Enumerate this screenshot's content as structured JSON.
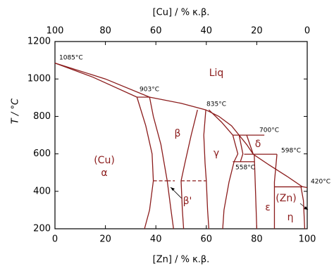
{
  "chart_data": {
    "type": "phase-diagram",
    "x_label": "[Zn] / % κ.β.",
    "x2_label": "[Cu] / % κ.β.",
    "y_label": "T / °C",
    "xlim": [
      0,
      100
    ],
    "xticks": [
      0,
      20,
      40,
      60,
      80,
      100
    ],
    "x2lim": [
      100,
      0
    ],
    "x2ticks": [
      100,
      80,
      60,
      40,
      20,
      0
    ],
    "ylim": [
      200,
      1200
    ],
    "yticks": [
      200,
      400,
      600,
      800,
      1000,
      1200
    ],
    "color": "#8b1c1c",
    "boundaries": [
      {
        "x": [
          0,
          20,
          37.5,
          50,
          59.8,
          65,
          70,
          73,
          76,
          78.6,
          85,
          92,
          98,
          100
        ],
        "values": [
          1085,
          1000,
          903,
          870,
          835,
          800,
          750,
          700,
          650,
          598,
          540,
          480,
          425,
          420
        ]
      },
      {
        "x": [
          0,
          15,
          32.5
        ],
        "values": [
          1085,
          1010,
          903
        ]
      },
      {
        "x": [
          32.5,
          37.5
        ],
        "values": [
          903,
          903
        ]
      },
      {
        "x": [
          32.5,
          36,
          38.5,
          39,
          37.5,
          35.5
        ],
        "values": [
          903,
          750,
          600,
          456,
          300,
          200
        ]
      },
      {
        "x": [
          37.5,
          39,
          42,
          44.5,
          46,
          47
        ],
        "values": [
          903,
          800,
          650,
          456,
          300,
          200
        ]
      },
      {
        "x": [
          56.5,
          54,
          51.5,
          50,
          50.5,
          51
        ],
        "values": [
          835,
          700,
          550,
          456,
          300,
          200
        ]
      },
      {
        "x": [
          59.8,
          59,
          59.5,
          60,
          60.5,
          61
        ],
        "values": [
          835,
          700,
          550,
          456,
          300,
          200
        ]
      },
      {
        "x": [
          61,
          66,
          70.5,
          72.5,
          71,
          69,
          67,
          66.5
        ],
        "values": [
          835,
          770,
          700,
          600,
          558,
          450,
          300,
          200
        ]
      },
      {
        "x": [
          70.5,
          83
        ],
        "values": [
          700,
          700
        ]
      },
      {
        "x": [
          73,
          74.5,
          73.5
        ],
        "values": [
          700,
          600,
          558
        ]
      },
      {
        "x": [
          76,
          78.6
        ],
        "values": [
          700,
          598
        ]
      },
      {
        "x": [
          75,
          88
        ],
        "values": [
          598,
          598
        ]
      },
      {
        "x": [
          70.5,
          79
        ],
        "values": [
          558,
          558
        ]
      },
      {
        "x": [
          79,
          79.5,
          80
        ],
        "values": [
          598,
          400,
          200
        ]
      },
      {
        "x": [
          88,
          87,
          87
        ],
        "values": [
          598,
          450,
          200
        ]
      },
      {
        "x": [
          87,
          98
        ],
        "values": [
          424,
          424
        ]
      },
      {
        "x": [
          97.5,
          98.5,
          99
        ],
        "values": [
          425,
          350,
          200
        ]
      }
    ],
    "dashed_boundaries": [
      {
        "x": [
          39,
          44.5
        ],
        "values": [
          456,
          456
        ]
      },
      {
        "x": [
          50,
          60
        ],
        "values": [
          456,
          456
        ]
      },
      {
        "x": [
          44.5,
          47.5
        ],
        "values": [
          456,
          456
        ]
      }
    ],
    "temperature_labels": [
      "1085°C",
      "903°C",
      "835°C",
      "700°C",
      "598°C",
      "558°C",
      "420°C"
    ],
    "phase_labels": [
      "Liq",
      "(Cu)",
      "α",
      "β",
      "γ",
      "δ",
      "β'",
      "ε",
      "(Zn)",
      "η"
    ]
  }
}
